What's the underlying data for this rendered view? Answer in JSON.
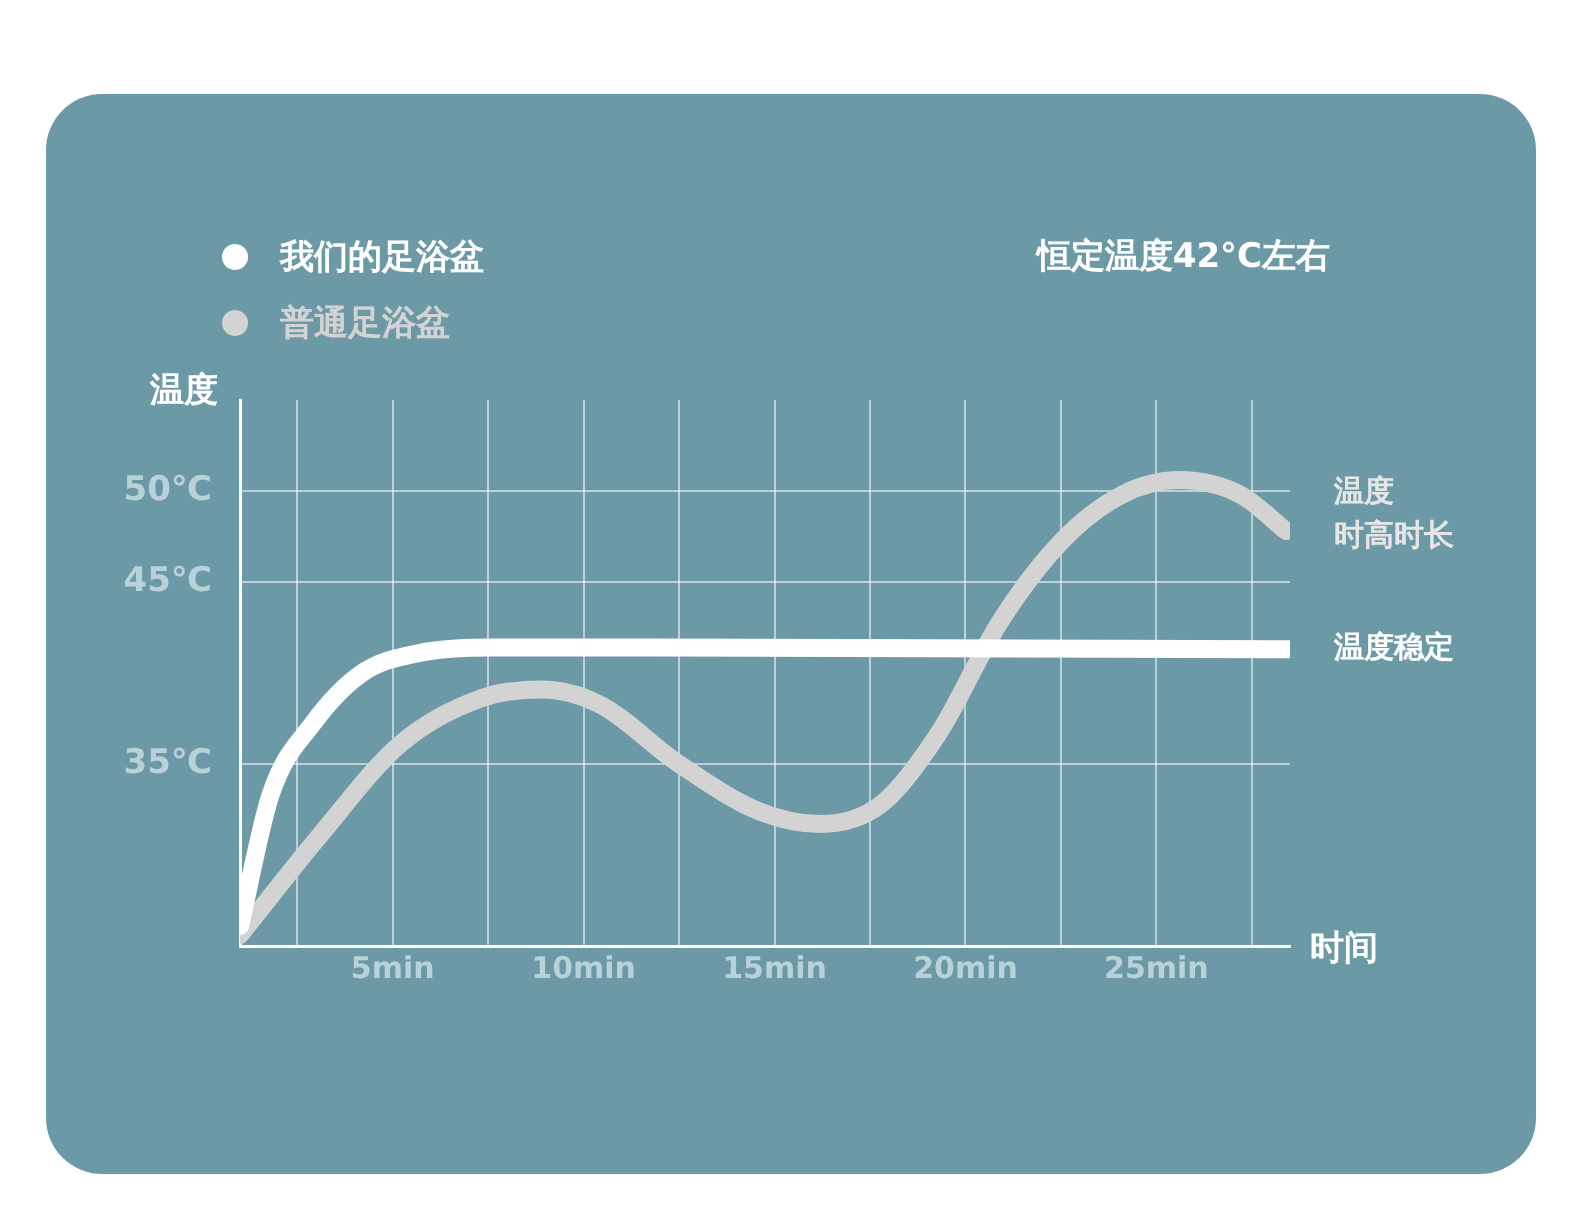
{
  "chart_data": {
    "type": "line",
    "xlabel": "时间",
    "ylabel": "温度",
    "xlim": [
      1,
      28.5
    ],
    "ylim": [
      25,
      55
    ],
    "xticks": [
      {
        "value": 2.5,
        "label": null
      },
      {
        "value": 5,
        "label": "5min"
      },
      {
        "value": 7.5,
        "label": null
      },
      {
        "value": 10,
        "label": "10min"
      },
      {
        "value": 12.5,
        "label": null
      },
      {
        "value": 15,
        "label": "15min"
      },
      {
        "value": 17.5,
        "label": null
      },
      {
        "value": 20,
        "label": "20min"
      },
      {
        "value": 22.5,
        "label": null
      },
      {
        "value": 25,
        "label": "25min"
      },
      {
        "value": 27.5,
        "label": null
      }
    ],
    "yticks": [
      {
        "value": 35,
        "label": "35℃"
      },
      {
        "value": 45,
        "label": "45℃"
      },
      {
        "value": 50,
        "label": "50℃"
      }
    ],
    "grid": true,
    "legend": "top left",
    "marker": "none",
    "line_style": "solid",
    "series": [
      {
        "name": "我们的足浴盆",
        "color": "#ffffff",
        "x": [
          1,
          1.8,
          2.9,
          4.2,
          5.7,
          7.6,
          10.4,
          28.5
        ],
        "values": [
          26.1,
          33.3,
          37.2,
          40,
          41.1,
          41.4,
          41.4,
          41.3
        ]
      },
      {
        "name": "普通足浴盆",
        "color": "#d3d3d3",
        "x": [
          1,
          3.1,
          5.2,
          7.3,
          8.9,
          10.4,
          12.5,
          14.6,
          16.2,
          17.8,
          19.3,
          20.9,
          22.5,
          24.1,
          25.6,
          27.2,
          28.4
        ],
        "values": [
          25.6,
          31.1,
          36.1,
          38.6,
          39.1,
          38.3,
          35,
          32.4,
          31.7,
          32.8,
          36.7,
          42.8,
          47.2,
          49.8,
          50.6,
          49.8,
          47.8
        ]
      }
    ],
    "annotations": [
      "恒定温度42°C左右",
      {
        "text": "温度稳定",
        "x": 28.5,
        "y": 41.3
      },
      "温度",
      "时高时长"
    ]
  }
}
